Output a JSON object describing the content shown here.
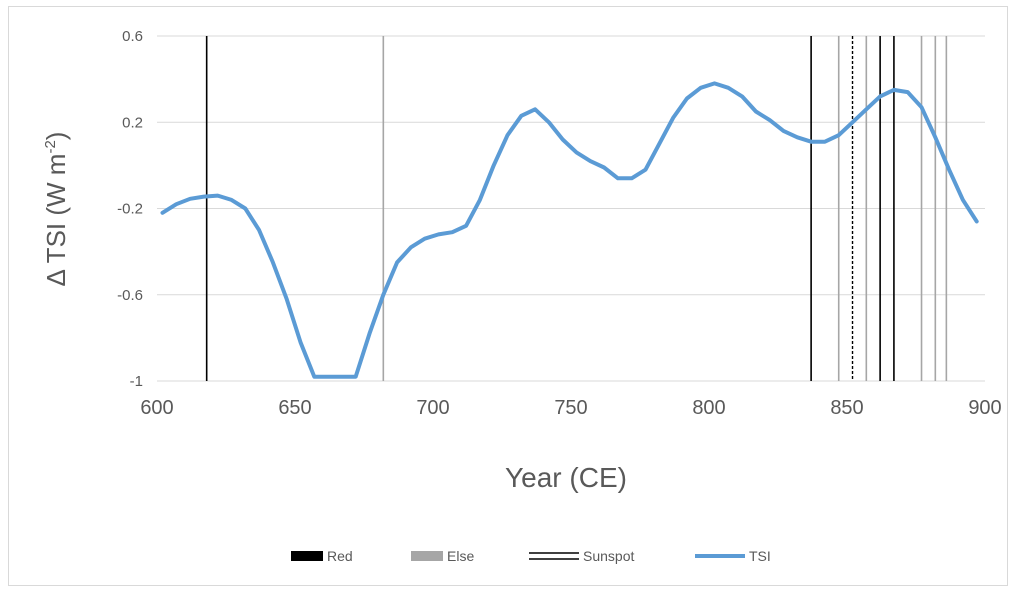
{
  "chart_data": {
    "type": "line",
    "title": "",
    "xlabel": "Year (CE)",
    "ylabel_main": "Δ TSI (W m",
    "ylabel_sup": "-2",
    "ylabel_close": ")",
    "xlim": [
      600,
      900
    ],
    "ylim": [
      -1,
      0.6
    ],
    "xticks": [
      "600",
      "650",
      "700",
      "750",
      "800",
      "850",
      "900"
    ],
    "yticks": [
      "0.6",
      "0.2",
      "-0.2",
      "-0.6",
      "-1"
    ],
    "grid": true,
    "legend_position": "bottom",
    "legend": [
      {
        "label": "Red",
        "kind": "box",
        "color": "#000000"
      },
      {
        "label": "Else",
        "kind": "box",
        "color": "#a6a6a6"
      },
      {
        "label": "Sunspot",
        "kind": "double-line",
        "color": "#000000"
      },
      {
        "label": "TSI",
        "kind": "line",
        "color": "#5b9bd5"
      }
    ],
    "event_lines": [
      {
        "year": 618,
        "category": "Red"
      },
      {
        "year": 682,
        "category": "Else"
      },
      {
        "year": 837,
        "category": "Red"
      },
      {
        "year": 847,
        "category": "Else"
      },
      {
        "year": 852,
        "category": "Sunspot"
      },
      {
        "year": 857,
        "category": "Else"
      },
      {
        "year": 862,
        "category": "Red"
      },
      {
        "year": 867,
        "category": "Red"
      },
      {
        "year": 877,
        "category": "Else"
      },
      {
        "year": 882,
        "category": "Else"
      },
      {
        "year": 886,
        "category": "Else"
      }
    ],
    "series": [
      {
        "name": "TSI",
        "color": "#5b9bd5",
        "x": [
          602,
          607,
          612,
          617,
          622,
          627,
          632,
          637,
          642,
          647,
          652,
          657,
          662,
          667,
          672,
          677,
          682,
          687,
          692,
          697,
          702,
          707,
          712,
          717,
          722,
          727,
          732,
          737,
          742,
          747,
          752,
          757,
          762,
          767,
          772,
          777,
          782,
          787,
          792,
          797,
          802,
          807,
          812,
          817,
          822,
          827,
          832,
          837,
          842,
          847,
          852,
          857,
          862,
          867,
          872,
          877,
          882,
          887,
          892,
          897
        ],
        "y": [
          -0.22,
          -0.18,
          -0.155,
          -0.145,
          -0.14,
          -0.16,
          -0.2,
          -0.3,
          -0.45,
          -0.62,
          -0.82,
          -0.98,
          -0.98,
          -0.98,
          -0.98,
          -0.78,
          -0.6,
          -0.45,
          -0.38,
          -0.34,
          -0.32,
          -0.31,
          -0.28,
          -0.16,
          0.0,
          0.14,
          0.23,
          0.26,
          0.2,
          0.12,
          0.06,
          0.02,
          -0.01,
          -0.06,
          -0.06,
          -0.02,
          0.1,
          0.22,
          0.31,
          0.36,
          0.38,
          0.36,
          0.32,
          0.25,
          0.21,
          0.16,
          0.13,
          0.11,
          0.11,
          0.14,
          0.2,
          0.26,
          0.32,
          0.35,
          0.34,
          0.27,
          0.13,
          -0.02,
          -0.16,
          -0.26
        ]
      }
    ]
  }
}
